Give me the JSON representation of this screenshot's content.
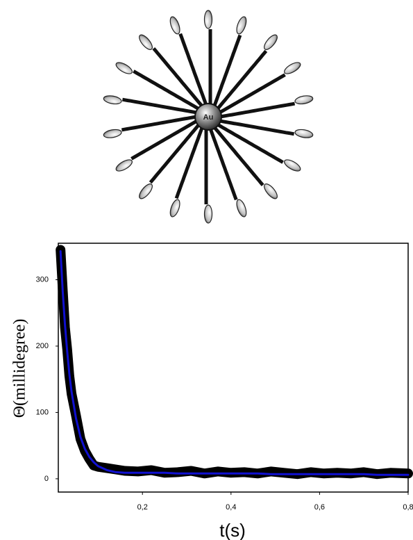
{
  "illustration": {
    "label": "Au"
  },
  "chart_data": {
    "type": "line",
    "x_label": "t(s)",
    "y_label": "Θ(millidegree)",
    "x": [
      0.015,
      0.02,
      0.025,
      0.03,
      0.035,
      0.04,
      0.05,
      0.06,
      0.07,
      0.08,
      0.09,
      0.1,
      0.12,
      0.14,
      0.16,
      0.19,
      0.22,
      0.25,
      0.28,
      0.31,
      0.34,
      0.37,
      0.4,
      0.43,
      0.46,
      0.49,
      0.52,
      0.55,
      0.58,
      0.61,
      0.64,
      0.67,
      0.7,
      0.73,
      0.76,
      0.8
    ],
    "series": [
      {
        "color": "#000000",
        "values": [
          345,
          285,
          228,
          195,
          155,
          128,
          95,
          60,
          42,
          30,
          20,
          18,
          16,
          14,
          12,
          11,
          13,
          9,
          10,
          12,
          8,
          11,
          9,
          10,
          8,
          11,
          9,
          7,
          10,
          8,
          9,
          8,
          10,
          7,
          9,
          8
        ]
      },
      {
        "color": "#1010d0",
        "values": [
          343,
          282,
          232,
          192,
          158,
          131,
          91,
          63,
          45,
          33,
          25,
          19,
          13,
          10,
          9,
          9,
          9,
          9,
          8,
          8,
          8,
          8,
          8,
          8,
          8,
          7,
          7,
          7,
          7,
          7,
          7,
          7,
          7,
          6,
          6,
          6
        ]
      }
    ],
    "xlim": [
      0.01,
      0.8
    ],
    "ylim": [
      -20,
      355
    ],
    "xticks": [
      {
        "value": 0.2,
        "label": "0,2"
      },
      {
        "value": 0.4,
        "label": "0,4"
      },
      {
        "value": 0.6,
        "label": "0,6"
      },
      {
        "value": 0.8,
        "label": "0,8"
      }
    ],
    "yticks": [
      0,
      100,
      200,
      300
    ]
  }
}
